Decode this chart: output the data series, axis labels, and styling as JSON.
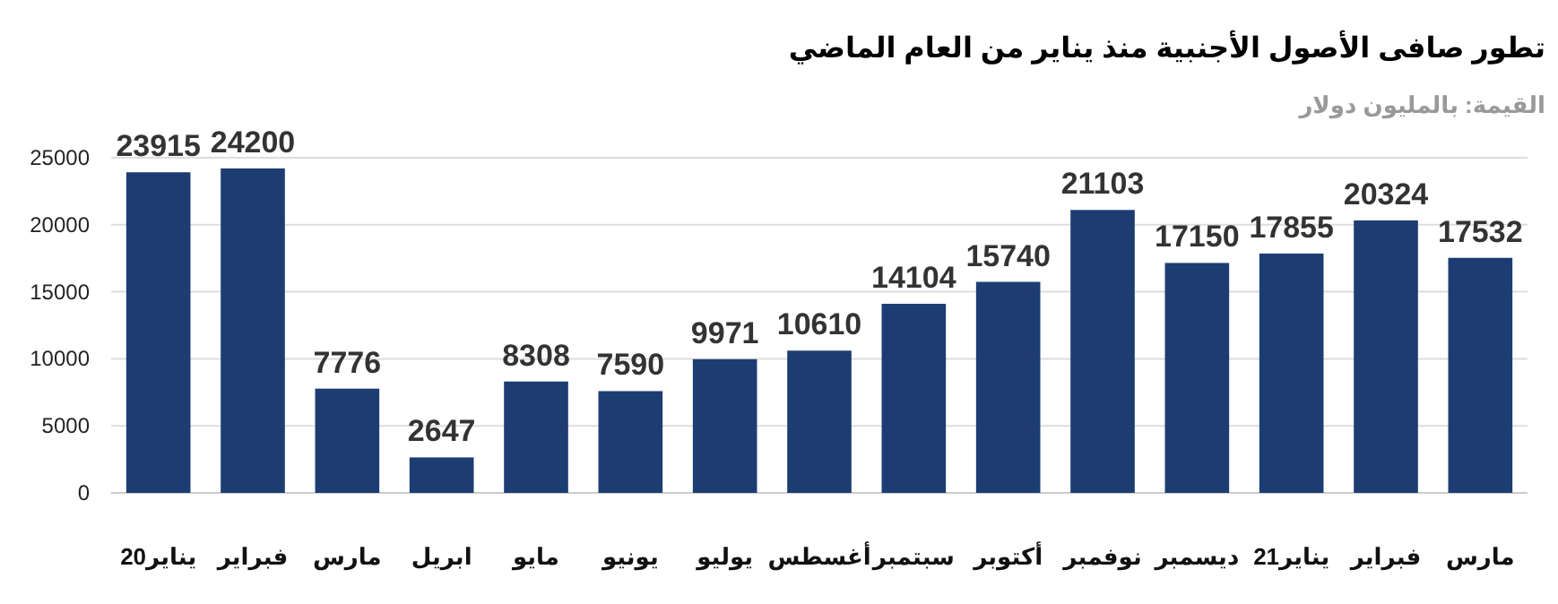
{
  "chart_data": {
    "type": "bar",
    "title": "تطور صافى الأصول الأجنبية منذ يناير من العام الماضي",
    "subtitle": "القيمة: بالمليون دولار",
    "categories": [
      "يناير20",
      "فبراير",
      "مارس",
      "ابريل",
      "مايو",
      "يونيو",
      "يوليو",
      "أغسطس",
      "سبتمبر",
      "أكتوبر",
      "نوفمبر",
      "ديسمبر",
      "يناير21",
      "فبراير",
      "مارس"
    ],
    "values": [
      23915,
      24200,
      7776,
      2647,
      8308,
      7590,
      9971,
      10610,
      14104,
      15740,
      21103,
      17150,
      17855,
      20324,
      17532
    ],
    "color": "#1d3d72",
    "ylim": [
      0,
      25000
    ],
    "yticks": [
      0,
      5000,
      10000,
      15000,
      20000,
      25000
    ],
    "grid": "y",
    "data_labels": true
  }
}
